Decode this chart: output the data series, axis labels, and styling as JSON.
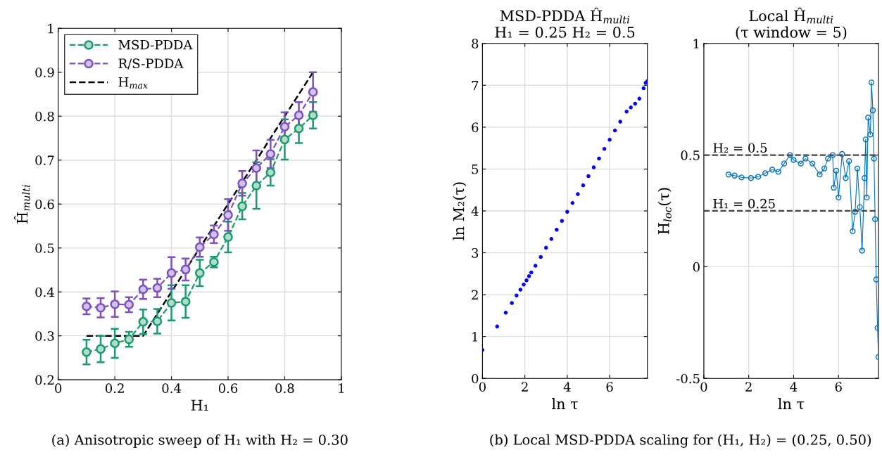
{
  "chart_data": [
    {
      "type": "line",
      "xlabel": "H₁",
      "ylabel": "Ĥ$_{multi}$",
      "x": [
        0.1,
        0.15,
        0.2,
        0.25,
        0.3,
        0.35,
        0.4,
        0.45,
        0.5,
        0.55,
        0.6,
        0.65,
        0.7,
        0.75,
        0.8,
        0.85,
        0.9
      ],
      "xlim": [
        0,
        1
      ],
      "xticks": [
        0,
        0.2,
        0.4,
        0.6,
        0.8,
        1
      ],
      "ylim": [
        0.2,
        1
      ],
      "yticks": [
        0.2,
        0.3,
        0.4,
        0.5,
        0.6,
        0.7,
        0.8,
        0.9,
        1
      ],
      "grid": true,
      "legend": "top left",
      "marker": "circle",
      "line_style": "dashed",
      "series": [
        {
          "name": "MSD-PDDA",
          "color": "#1b9a6a",
          "values": [
            0.263,
            0.27,
            0.283,
            0.292,
            0.332,
            0.333,
            0.375,
            0.378,
            0.443,
            0.468,
            0.525,
            0.595,
            0.642,
            0.672,
            0.747,
            0.772,
            0.802
          ],
          "errors": [
            0.028,
            0.03,
            0.033,
            0.017,
            0.028,
            0.028,
            0.04,
            0.037,
            0.03,
            0.012,
            0.035,
            0.03,
            0.053,
            0.03,
            0.046,
            0.033,
            0.03
          ]
        },
        {
          "name": "R/S-PDDA",
          "color": "#7e4fbf",
          "values": [
            0.367,
            0.364,
            0.372,
            0.371,
            0.406,
            0.409,
            0.443,
            0.451,
            0.502,
            0.531,
            0.575,
            0.647,
            0.682,
            0.714,
            0.776,
            0.802,
            0.855
          ],
          "errors": [
            0.018,
            0.022,
            0.029,
            0.017,
            0.022,
            0.021,
            0.036,
            0.025,
            0.022,
            0.02,
            0.036,
            0.028,
            0.04,
            0.032,
            0.033,
            0.03,
            0.045
          ]
        },
        {
          "name": "H$_{max}$",
          "color": "#000000",
          "marker": "none",
          "x": [
            0.1,
            0.3,
            0.9
          ],
          "values": [
            0.3,
            0.3,
            0.9
          ]
        }
      ],
      "annotations": [
        "(a) Anisotropic sweep of H₁ with H₂ = 0.30"
      ]
    },
    {
      "type": "scatter",
      "title": "MSD-PDDA Ĥ$_{multi}$\nH₁ = 0.25 H₂ = 0.5",
      "xlabel": "ln τ",
      "ylabel": "ln M₂(τ)",
      "x": [
        0,
        0.693,
        1.099,
        1.386,
        1.609,
        1.792,
        1.946,
        2.079,
        2.197,
        2.303,
        2.5,
        2.75,
        3,
        3.25,
        3.5,
        3.75,
        4,
        4.25,
        4.5,
        4.75,
        5,
        5.25,
        5.5,
        5.75,
        6,
        6.25,
        6.5,
        6.8,
        7,
        7.2,
        7.4,
        7.6,
        7.7,
        7.78
      ],
      "values": [
        0.68,
        1.24,
        1.57,
        1.8,
        1.98,
        2.12,
        2.24,
        2.34,
        2.44,
        2.53,
        2.69,
        2.9,
        3.12,
        3.33,
        3.55,
        3.76,
        3.98,
        4.19,
        4.4,
        4.61,
        4.83,
        5.04,
        5.25,
        5.48,
        5.7,
        5.92,
        6.13,
        6.37,
        6.47,
        6.56,
        6.68,
        6.93,
        7.06,
        7.1
      ],
      "color": "#0000ff",
      "marker": "circle",
      "xlim": [
        0,
        7.78
      ],
      "xticks": [
        0,
        2,
        4,
        6
      ],
      "ylim": [
        0,
        8
      ],
      "yticks": [
        0,
        1,
        2,
        3,
        4,
        5,
        6,
        7,
        8
      ],
      "grid": true,
      "annotations": [
        "(b) Local MSD-PDDA scaling for (H₁, H₂) = (0.25, 0.50)"
      ]
    },
    {
      "type": "line",
      "title": "Local Ĥ$_{multi}$\n(τ window = 5)",
      "xlabel": "ln τ",
      "ylabel": "H$_{loc}$(τ)",
      "x": [
        1.1,
        1.37,
        1.68,
        2.1,
        2.42,
        2.74,
        3.05,
        3.32,
        3.58,
        3.84,
        4.0,
        4.32,
        4.53,
        4.84,
        5.16,
        5.37,
        5.53,
        5.74,
        5.79,
        5.9,
        6.0,
        6.16,
        6.32,
        6.47,
        6.63,
        6.74,
        6.84,
        6.95,
        7.05,
        7.16,
        7.21,
        7.26,
        7.32,
        7.42,
        7.47,
        7.53,
        7.58,
        7.63,
        7.68,
        7.74,
        7.78
      ],
      "values": [
        0.413,
        0.408,
        0.4,
        0.397,
        0.403,
        0.419,
        0.435,
        0.425,
        0.462,
        0.5,
        0.478,
        0.462,
        0.484,
        0.462,
        0.413,
        0.44,
        0.484,
        0.5,
        0.354,
        0.43,
        0.31,
        0.505,
        0.397,
        0.473,
        0.159,
        0.246,
        0.44,
        0.267,
        0.072,
        0.397,
        0.57,
        0.31,
        0.668,
        0.592,
        0.825,
        0.7,
        0.484,
        0.213,
        -0.057,
        -0.274,
        -0.404
      ],
      "color": "#0072bd",
      "marker": "circle",
      "line_style": "solid",
      "xlim": [
        0,
        7.78
      ],
      "xticks": [
        0,
        2,
        4,
        6
      ],
      "ylim": [
        -0.5,
        1
      ],
      "yticks": [
        -0.5,
        0,
        0.5,
        1
      ],
      "grid": true,
      "ref_lines": [
        {
          "axis": "y",
          "value": 0.5,
          "label": "H₂ = 0.5",
          "color": "#444444",
          "line_style": "dashed"
        },
        {
          "axis": "y",
          "value": 0.25,
          "label": "H₁ = 0.25",
          "color": "#444444",
          "line_style": "dashed"
        }
      ]
    }
  ]
}
